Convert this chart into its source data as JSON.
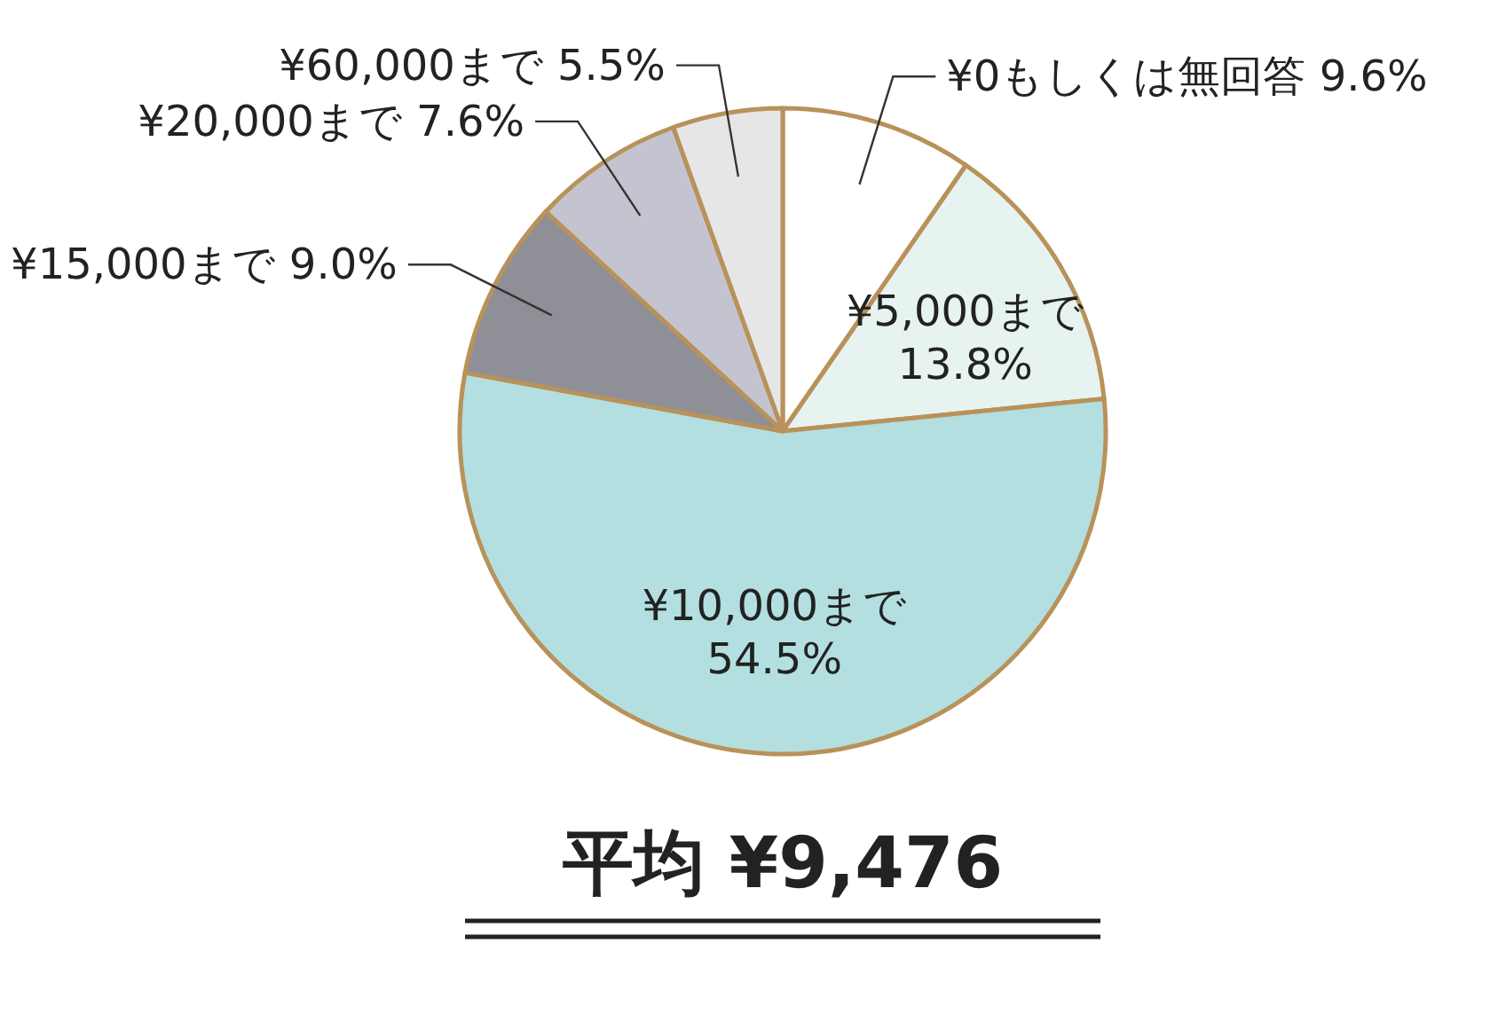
{
  "chart_data": {
    "type": "pie",
    "categories": [
      "¥0もしくは無回答",
      "¥5,000まで",
      "¥10,000まで",
      "¥15,000まで",
      "¥20,000まで",
      "¥60,000まで"
    ],
    "values": [
      9.6,
      13.8,
      54.5,
      9.0,
      7.6,
      5.5
    ],
    "colors": [
      "#ffffff",
      "#e6f3f0",
      "#b3dfe0",
      "#8f8f97",
      "#c4c4d0",
      "#e6e6e6"
    ],
    "value_labels": [
      "9.6%",
      "13.8%",
      "54.5%",
      "9.0%",
      "7.6%",
      "5.5%"
    ],
    "annotations": [
      "平均 ¥9,476"
    ]
  }
}
